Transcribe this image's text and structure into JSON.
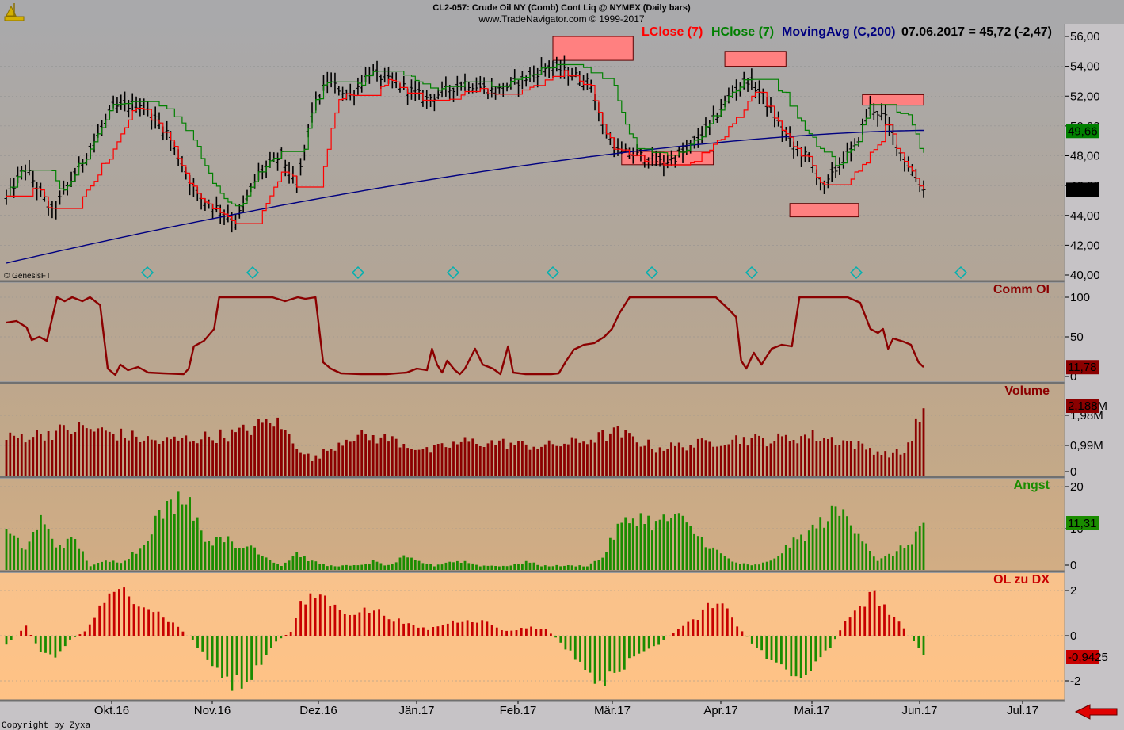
{
  "header": {
    "line1": "CL2-057:  Crude Oil NY (Comb) Cont Liq @ NYMEX  (Daily bars)",
    "line2": "www.TradeNavigator.com © 1999-2017"
  },
  "legend": {
    "lclose": "LClose (7)",
    "hclose": "HClose (7)",
    "ma": "MovingAvg (C,200)",
    "quote": "07.06.2017 = 45,72 (-2,47)"
  },
  "colors": {
    "lclose": "#ff0000",
    "hclose": "#008000",
    "ma": "#000080",
    "commoi": "#8b0000",
    "volume": "#8b0000",
    "angst": "#1a8c00",
    "ol_pos": "#c80000",
    "ol_neg": "#1a8c00",
    "highlight_box": "#ff8080"
  },
  "watermark": "© GenesisFT",
  "copyright": "Copyright by Zyxa",
  "x_axis": {
    "ticks": [
      "Okt.16",
      "Nov.16",
      "Dez.16",
      "Jän.17",
      "Feb.17",
      "Mär.17",
      "Apr.17",
      "Mai.17",
      "Jun.17",
      "Jul.17"
    ]
  },
  "chart_data": [
    {
      "type": "ohlc",
      "panel": "price",
      "y_ticks": [
        "56,00",
        "54,00",
        "52,00",
        "50,00",
        "48,00",
        "46,00",
        "44,00",
        "42,00",
        "40,00"
      ],
      "ylim": [
        40,
        56
      ],
      "last_close_label": "45,72",
      "hclose_last_label": "49,66",
      "anchor_closes": [
        [
          0,
          45.2
        ],
        [
          5,
          47.2
        ],
        [
          12,
          44.2
        ],
        [
          22,
          48.5
        ],
        [
          28,
          51.2
        ],
        [
          35,
          51.5
        ],
        [
          42,
          49.6
        ],
        [
          50,
          45.3
        ],
        [
          57,
          44.2
        ],
        [
          60,
          43.6
        ],
        [
          66,
          46.8
        ],
        [
          72,
          48.0
        ],
        [
          76,
          45.8
        ],
        [
          80,
          51.0
        ],
        [
          84,
          53.0
        ],
        [
          90,
          52.0
        ],
        [
          95,
          53.6
        ],
        [
          105,
          52.5
        ],
        [
          110,
          51.8
        ],
        [
          120,
          52.9
        ],
        [
          128,
          52.3
        ],
        [
          136,
          53.2
        ],
        [
          142,
          54.0
        ],
        [
          148,
          53.5
        ],
        [
          153,
          52.8
        ],
        [
          156,
          50.0
        ],
        [
          160,
          48.3
        ],
        [
          166,
          48.0
        ],
        [
          172,
          47.5
        ],
        [
          178,
          48.3
        ],
        [
          184,
          50.0
        ],
        [
          190,
          52.3
        ],
        [
          194,
          53.1
        ],
        [
          198,
          52.0
        ],
        [
          202,
          50.2
        ],
        [
          206,
          48.6
        ],
        [
          210,
          47.8
        ],
        [
          214,
          45.8
        ],
        [
          218,
          47.5
        ],
        [
          222,
          48.5
        ],
        [
          226,
          51.3
        ],
        [
          230,
          50.5
        ],
        [
          234,
          48.2
        ],
        [
          240,
          45.72
        ]
      ],
      "ma_range": [
        40.8,
        49.7
      ],
      "highlight_boxes": [
        {
          "from_bar": 143,
          "to_bar": 164,
          "y_top": 56.0,
          "y_bottom": 54.4
        },
        {
          "from_bar": 161,
          "to_bar": 185,
          "y_top": 48.3,
          "y_bottom": 47.4
        },
        {
          "from_bar": 188,
          "to_bar": 204,
          "y_top": 55.0,
          "y_bottom": 54.0
        },
        {
          "from_bar": 205,
          "to_bar": 223,
          "y_top": 44.8,
          "y_bottom": 43.9
        },
        {
          "from_bar": 224,
          "to_bar": 240,
          "y_top": 52.1,
          "y_bottom": 51.4
        }
      ]
    },
    {
      "type": "line",
      "panel": "commoi",
      "title": "Comm OI",
      "y_ticks": [
        "100",
        "50",
        "0"
      ],
      "ylim": [
        0,
        100
      ],
      "last_value_label": "11,78",
      "points": [
        [
          0,
          68
        ],
        [
          4,
          70
        ],
        [
          8,
          62
        ],
        [
          10,
          46
        ],
        [
          13,
          50
        ],
        [
          16,
          45
        ],
        [
          20,
          102
        ],
        [
          23,
          95
        ],
        [
          26,
          100
        ],
        [
          30,
          95
        ],
        [
          33,
          100
        ],
        [
          37,
          90
        ],
        [
          40,
          10
        ],
        [
          43,
          2
        ],
        [
          45,
          15
        ],
        [
          48,
          8
        ],
        [
          52,
          12
        ],
        [
          56,
          5
        ],
        [
          62,
          4
        ],
        [
          70,
          3
        ],
        [
          72,
          10
        ],
        [
          74,
          38
        ],
        [
          78,
          45
        ],
        [
          82,
          60
        ],
        [
          84,
          102
        ],
        [
          95,
          102
        ],
        [
          100,
          100
        ],
        [
          105,
          102
        ],
        [
          110,
          95
        ],
        [
          115,
          100
        ],
        [
          118,
          98
        ],
        [
          122,
          100
        ],
        [
          125,
          18
        ],
        [
          128,
          10
        ],
        [
          132,
          4
        ],
        [
          140,
          3
        ],
        [
          150,
          3
        ],
        [
          158,
          5
        ],
        [
          162,
          10
        ],
        [
          166,
          8
        ],
        [
          168,
          35
        ],
        [
          170,
          15
        ],
        [
          172,
          5
        ],
        [
          174,
          20
        ],
        [
          177,
          8
        ],
        [
          179,
          3
        ],
        [
          181,
          10
        ],
        [
          185,
          35
        ],
        [
          188,
          15
        ],
        [
          192,
          10
        ],
        [
          195,
          3
        ],
        [
          198,
          38
        ],
        [
          200,
          5
        ],
        [
          205,
          3
        ],
        [
          215,
          3
        ],
        [
          218,
          4
        ],
        [
          221,
          20
        ],
        [
          224,
          34
        ],
        [
          228,
          40
        ],
        [
          232,
          42
        ],
        [
          236,
          50
        ],
        [
          239,
          60
        ],
        [
          242,
          80
        ],
        [
          246,
          100
        ],
        [
          255,
          102
        ],
        [
          262,
          100
        ],
        [
          270,
          102
        ],
        [
          280,
          100
        ],
        [
          285,
          85
        ],
        [
          288,
          75
        ],
        [
          290,
          20
        ],
        [
          292,
          10
        ],
        [
          295,
          30
        ],
        [
          298,
          15
        ],
        [
          302,
          35
        ],
        [
          306,
          40
        ],
        [
          310,
          38
        ],
        [
          313,
          100
        ],
        [
          325,
          102
        ],
        [
          332,
          100
        ],
        [
          337,
          93
        ],
        [
          341,
          60
        ],
        [
          344,
          55
        ],
        [
          346,
          60
        ],
        [
          348,
          35
        ],
        [
          350,
          48
        ],
        [
          354,
          44
        ],
        [
          357,
          40
        ],
        [
          360,
          18
        ],
        [
          362,
          11.78
        ]
      ]
    },
    {
      "type": "bar",
      "panel": "volume",
      "title": "Volume",
      "y_ticks": [
        "1,98M",
        "0,99M",
        "0"
      ],
      "ylim": [
        0,
        2.45
      ],
      "last_value_label": "2,188M",
      "anchor_values": [
        [
          0,
          1.2
        ],
        [
          20,
          1.55
        ],
        [
          40,
          1.1
        ],
        [
          60,
          1.35
        ],
        [
          70,
          1.8
        ],
        [
          80,
          0.5
        ],
        [
          90,
          1.3
        ],
        [
          100,
          1.2
        ],
        [
          110,
          0.8
        ],
        [
          120,
          1.1
        ],
        [
          130,
          1.05
        ],
        [
          140,
          0.95
        ],
        [
          150,
          1.1
        ],
        [
          160,
          1.4
        ],
        [
          170,
          0.9
        ],
        [
          180,
          1.0
        ],
        [
          190,
          1.2
        ],
        [
          200,
          1.15
        ],
        [
          210,
          1.3
        ],
        [
          220,
          1.1
        ],
        [
          230,
          0.7
        ],
        [
          235,
          0.75
        ],
        [
          240,
          2.188
        ]
      ]
    },
    {
      "type": "bar",
      "panel": "angst",
      "title": "Angst",
      "y_ticks": [
        "20",
        "10",
        "0"
      ],
      "ylim": [
        0,
        20
      ],
      "last_value_label": "11,31",
      "anchor_values": [
        [
          0,
          9
        ],
        [
          5,
          5
        ],
        [
          9,
          12
        ],
        [
          13,
          6
        ],
        [
          18,
          7
        ],
        [
          22,
          1
        ],
        [
          26,
          2
        ],
        [
          30,
          2
        ],
        [
          35,
          5
        ],
        [
          39,
          12
        ],
        [
          45,
          17
        ],
        [
          47,
          19
        ],
        [
          50,
          12
        ],
        [
          53,
          6
        ],
        [
          56,
          9
        ],
        [
          60,
          5
        ],
        [
          64,
          6
        ],
        [
          68,
          3
        ],
        [
          72,
          1
        ],
        [
          76,
          4
        ],
        [
          80,
          2
        ],
        [
          84,
          1
        ],
        [
          88,
          1
        ],
        [
          92,
          1
        ],
        [
          96,
          2
        ],
        [
          100,
          1
        ],
        [
          104,
          3
        ],
        [
          108,
          2
        ],
        [
          112,
          1
        ],
        [
          116,
          2
        ],
        [
          120,
          2
        ],
        [
          124,
          1
        ],
        [
          128,
          1
        ],
        [
          132,
          1
        ],
        [
          136,
          2
        ],
        [
          140,
          1
        ],
        [
          144,
          1
        ],
        [
          148,
          1
        ],
        [
          152,
          1
        ],
        [
          156,
          3
        ],
        [
          160,
          10
        ],
        [
          165,
          13
        ],
        [
          170,
          11
        ],
        [
          175,
          13
        ],
        [
          180,
          9
        ],
        [
          185,
          5
        ],
        [
          190,
          2
        ],
        [
          195,
          1
        ],
        [
          200,
          2
        ],
        [
          205,
          6
        ],
        [
          210,
          9
        ],
        [
          214,
          12
        ],
        [
          217,
          14
        ],
        [
          220,
          13
        ],
        [
          224,
          8
        ],
        [
          228,
          2
        ],
        [
          232,
          4
        ],
        [
          236,
          6
        ],
        [
          240,
          11.31
        ]
      ]
    },
    {
      "type": "bar",
      "panel": "olzudx",
      "title": "OL zu DX",
      "y_ticks": [
        "2",
        "0",
        "-2"
      ],
      "ylim": [
        -2.6,
        2.2
      ],
      "last_value_label": "-0,9425",
      "anchor_values": [
        [
          0,
          -0.4
        ],
        [
          4,
          0.4
        ],
        [
          7,
          -0.7
        ],
        [
          10,
          -1.0
        ],
        [
          13,
          -0.2
        ],
        [
          16,
          0.2
        ],
        [
          20,
          1.6
        ],
        [
          24,
          2.1
        ],
        [
          28,
          1.5
        ],
        [
          32,
          0.9
        ],
        [
          35,
          0.4
        ],
        [
          38,
          -0.2
        ],
        [
          42,
          -1.4
        ],
        [
          46,
          -2.2
        ],
        [
          49,
          -2.3
        ],
        [
          52,
          -1.3
        ],
        [
          55,
          -0.3
        ],
        [
          58,
          0.2
        ],
        [
          60,
          1.4
        ],
        [
          64,
          2.0
        ],
        [
          67,
          1.3
        ],
        [
          70,
          1.1
        ],
        [
          75,
          1.2
        ],
        [
          79,
          0.8
        ],
        [
          82,
          0.5
        ],
        [
          86,
          0.3
        ],
        [
          90,
          0.6
        ],
        [
          94,
          0.8
        ],
        [
          98,
          0.6
        ],
        [
          102,
          0.2
        ],
        [
          106,
          0.4
        ],
        [
          110,
          0.3
        ],
        [
          113,
          -0.3
        ],
        [
          116,
          -1.1
        ],
        [
          119,
          -1.8
        ],
        [
          122,
          -2.3
        ],
        [
          125,
          -1.5
        ],
        [
          128,
          -1.1
        ],
        [
          131,
          -0.7
        ],
        [
          134,
          -0.2
        ],
        [
          137,
          0.3
        ],
        [
          140,
          0.7
        ],
        [
          143,
          1.3
        ],
        [
          146,
          1.4
        ],
        [
          149,
          0.5
        ],
        [
          153,
          -0.6
        ],
        [
          156,
          -1.1
        ],
        [
          159,
          -1.6
        ],
        [
          162,
          -1.9
        ],
        [
          165,
          -1.4
        ],
        [
          168,
          -0.5
        ],
        [
          171,
          0.6
        ],
        [
          174,
          1.5
        ],
        [
          177,
          1.9
        ],
        [
          180,
          1.1
        ],
        [
          183,
          0.3
        ],
        [
          185,
          -0.3
        ],
        [
          187,
          -0.9
        ]
      ]
    }
  ]
}
